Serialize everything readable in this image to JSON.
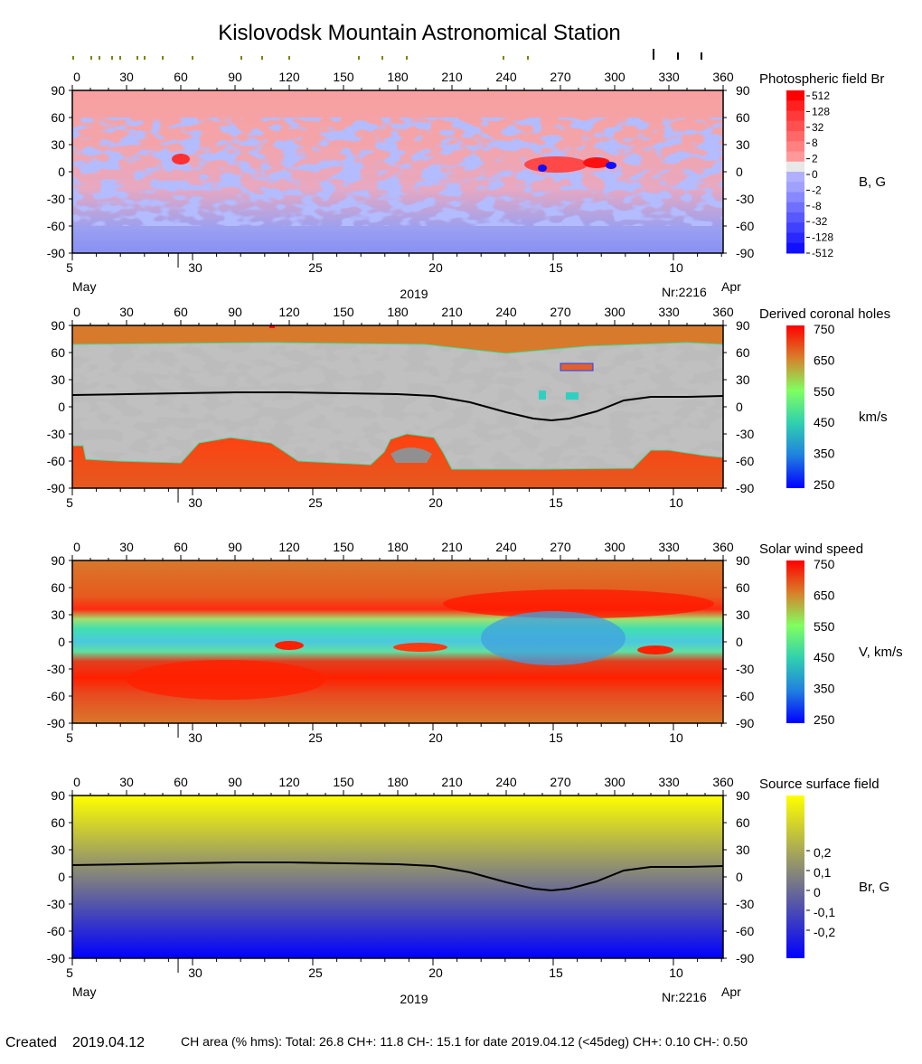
{
  "title": "Kislovodsk Mountain Astronomical Station",
  "top_markers": {
    "olive_lon": [
      0.5,
      10.5,
      15,
      22,
      26.5,
      36,
      40,
      50,
      66.5,
      93.5,
      105,
      120,
      158.5,
      171.5,
      185,
      238.5,
      252
    ],
    "black_lon": [
      321.5,
      335,
      348
    ],
    "olive_color": "#808000",
    "black_color": "#000000"
  },
  "axes": {
    "lon_ticks": [
      "0",
      "30",
      "60",
      "90",
      "120",
      "150",
      "180",
      "210",
      "240",
      "270",
      "300",
      "330",
      "360"
    ],
    "lat_ticks": [
      "90",
      "60",
      "30",
      "0",
      "-30",
      "-60",
      "-90"
    ],
    "date_ticks": [
      {
        "label": "5",
        "day_offset": 0
      },
      {
        "label": "30",
        "day_offset": 5
      },
      {
        "label": "25",
        "day_offset": 10
      },
      {
        "label": "20",
        "day_offset": 15
      },
      {
        "label": "15",
        "day_offset": 20
      },
      {
        "label": "10",
        "day_offset": 25
      }
    ],
    "month_left": "May",
    "month_right": "Apr",
    "year": "2019",
    "rotation": "Nr:2216"
  },
  "chart_data": [
    {
      "type": "heatmap",
      "title": "Photospheric field Br",
      "colorbar_unit": "B, G",
      "colorbar_labels": [
        "512",
        "128",
        "32",
        "8",
        "2",
        "0",
        "-2",
        "-8",
        "-32",
        "-128",
        "-512"
      ],
      "colorbar_colors": [
        "#ff0000",
        "#ff2020",
        "#ff3a3a",
        "#ff5050",
        "#ff6868",
        "#ff8080",
        "#ff9898",
        "#e8e8e8",
        "#b0b0ff",
        "#a0a0ff",
        "#8888ff",
        "#7070ff",
        "#5858ff",
        "#4040ff",
        "#2828ff",
        "#1010ff"
      ],
      "xlim": [
        0,
        360
      ],
      "ylim": [
        -90,
        90
      ]
    },
    {
      "type": "heatmap",
      "title": "Derived coronal holes",
      "colorbar_unit": "km/s",
      "colorbar_labels": [
        "750",
        "650",
        "550",
        "450",
        "350",
        "250"
      ],
      "colorbar_range": [
        250,
        750
      ],
      "neutral_line": true,
      "xlim": [
        0,
        360
      ],
      "ylim": [
        -90,
        90
      ]
    },
    {
      "type": "heatmap",
      "title": "Solar wind speed",
      "colorbar_unit": "V, km/s",
      "colorbar_labels": [
        "750",
        "650",
        "550",
        "450",
        "350",
        "250"
      ],
      "colorbar_range": [
        250,
        750
      ],
      "xlim": [
        0,
        360
      ],
      "ylim": [
        -90,
        90
      ]
    },
    {
      "type": "heatmap",
      "title": "Source surface field",
      "colorbar_unit": "Br, G",
      "colorbar_labels": [
        "0,2",
        "0,1",
        "0",
        "-0,1",
        "-0,2"
      ],
      "neutral_line": true,
      "xlim": [
        0,
        360
      ],
      "ylim": [
        -90,
        90
      ]
    }
  ],
  "neutral_line": {
    "lon": [
      0,
      30,
      60,
      90,
      120,
      150,
      180,
      200,
      220,
      240,
      255,
      265,
      275,
      290,
      305,
      320,
      340,
      360
    ],
    "lat": [
      13,
      14,
      15,
      16,
      16,
      15,
      14,
      12,
      5,
      -6,
      -13,
      -15,
      -13,
      -5,
      7,
      11,
      11,
      12
    ]
  },
  "footer": {
    "created_label": "Created",
    "created_date": "2019.04.12",
    "stats": "CH area (% hms): Total: 26.8 CH+: 11.8   CH-: 15.1 for date 2019.04.12 (<45deg) CH+: 0.10    CH-: 0.50"
  }
}
